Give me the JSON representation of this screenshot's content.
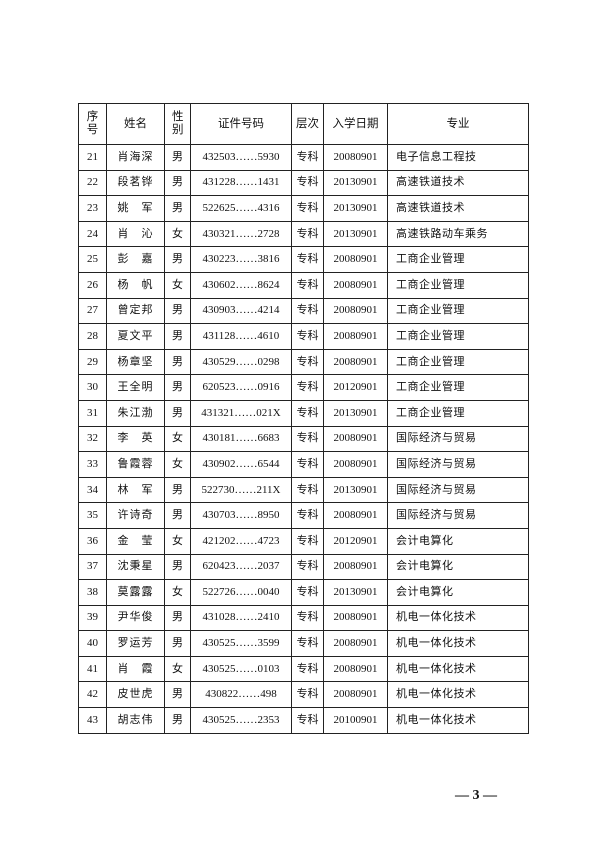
{
  "table": {
    "header": [
      "序号",
      "姓名",
      "性别",
      "证件号码",
      "层次",
      "入学日期",
      "专业"
    ],
    "rows": [
      [
        "21",
        "肖海深",
        "男",
        "432503……5930",
        "专科",
        "20080901",
        "电子信息工程技"
      ],
      [
        "22",
        "段茗铧",
        "男",
        "431228……1431",
        "专科",
        "20130901",
        "高速铁道技术"
      ],
      [
        "23",
        "姚　军",
        "男",
        "522625……4316",
        "专科",
        "20130901",
        "高速铁道技术"
      ],
      [
        "24",
        "肖　沁",
        "女",
        "430321……2728",
        "专科",
        "20130901",
        "高速铁路动车乘务"
      ],
      [
        "25",
        "彭　嘉",
        "男",
        "430223……3816",
        "专科",
        "20080901",
        "工商企业管理"
      ],
      [
        "26",
        "杨　帆",
        "女",
        "430602……8624",
        "专科",
        "20080901",
        "工商企业管理"
      ],
      [
        "27",
        "曾定邦",
        "男",
        "430903……4214",
        "专科",
        "20080901",
        "工商企业管理"
      ],
      [
        "28",
        "夏文平",
        "男",
        "431128……4610",
        "专科",
        "20080901",
        "工商企业管理"
      ],
      [
        "29",
        "杨章坚",
        "男",
        "430529……0298",
        "专科",
        "20080901",
        "工商企业管理"
      ],
      [
        "30",
        "王全明",
        "男",
        "620523……0916",
        "专科",
        "20120901",
        "工商企业管理"
      ],
      [
        "31",
        "朱江渤",
        "男",
        "431321……021X",
        "专科",
        "20130901",
        "工商企业管理"
      ],
      [
        "32",
        "李　英",
        "女",
        "430181……6683",
        "专科",
        "20080901",
        "国际经济与贸易"
      ],
      [
        "33",
        "鲁霞蓉",
        "女",
        "430902……6544",
        "专科",
        "20080901",
        "国际经济与贸易"
      ],
      [
        "34",
        "林　军",
        "男",
        "522730……211X",
        "专科",
        "20130901",
        "国际经济与贸易"
      ],
      [
        "35",
        "许诗奇",
        "男",
        "430703……8950",
        "专科",
        "20080901",
        "国际经济与贸易"
      ],
      [
        "36",
        "金　莹",
        "女",
        "421202……4723",
        "专科",
        "20120901",
        "会计电算化"
      ],
      [
        "37",
        "沈秉星",
        "男",
        "620423……2037",
        "专科",
        "20080901",
        "会计电算化"
      ],
      [
        "38",
        "莫露露",
        "女",
        "522726……0040",
        "专科",
        "20130901",
        "会计电算化"
      ],
      [
        "39",
        "尹华俊",
        "男",
        "431028……2410",
        "专科",
        "20080901",
        "机电一体化技术"
      ],
      [
        "40",
        "罗运芳",
        "男",
        "430525……3599",
        "专科",
        "20080901",
        "机电一体化技术"
      ],
      [
        "41",
        "肖　霞",
        "女",
        "430525……0103",
        "专科",
        "20080901",
        "机电一体化技术"
      ],
      [
        "42",
        "皮世虎",
        "男",
        "430822……498",
        "专科",
        "20080901",
        "机电一体化技术"
      ],
      [
        "43",
        "胡志伟",
        "男",
        "430525……2353",
        "专科",
        "20100901",
        "机电一体化技术"
      ]
    ]
  },
  "footer": {
    "page_number": "— 3 —"
  }
}
